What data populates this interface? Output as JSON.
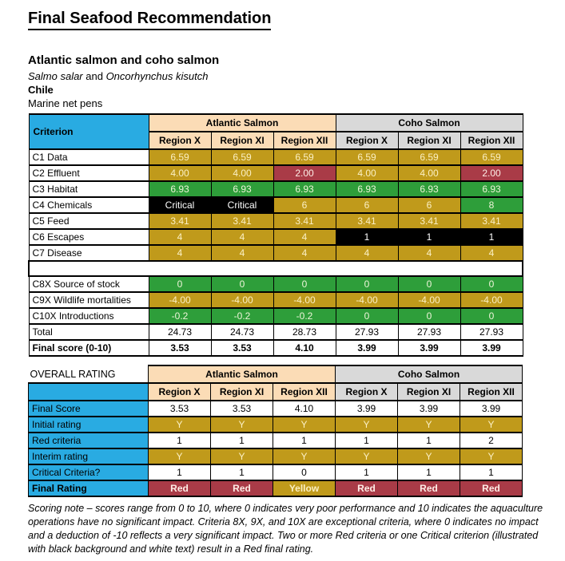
{
  "page": {
    "title": "Final Seafood Recommendation",
    "species_heading": "Atlantic salmon and coho salmon",
    "latin_1": "Salmo salar",
    "latin_mid": " and ",
    "latin_2": "Oncorhynchus kisutch",
    "country": "Chile",
    "method": "Marine net pens"
  },
  "colors": {
    "header_blue": "#29ABE2",
    "atlantic_peach": "#FBDCB6",
    "coho_gray": "#D9D9D9",
    "score_gold": "#C09A1B",
    "score_green": "#2E9E3A",
    "score_red": "#A93B47",
    "critical_black": "#000000"
  },
  "scores_table": {
    "corner_label": "Criterion",
    "group_headers": [
      {
        "label": "Atlantic Salmon"
      },
      {
        "label": "Coho Salmon"
      }
    ],
    "region_headers": [
      "Region X",
      "Region XI",
      "Region XII",
      "Region X",
      "Region XI",
      "Region XII"
    ],
    "rows": [
      {
        "label": "C1 Data",
        "cells": [
          {
            "text": "6.59",
            "color": "gold"
          },
          {
            "text": "6.59",
            "color": "gold"
          },
          {
            "text": "6.59",
            "color": "gold"
          },
          {
            "text": "6.59",
            "color": "gold"
          },
          {
            "text": "6.59",
            "color": "gold"
          },
          {
            "text": "6.59",
            "color": "gold"
          }
        ]
      },
      {
        "label": "C2 Effluent",
        "cells": [
          {
            "text": "4.00",
            "color": "gold"
          },
          {
            "text": "4.00",
            "color": "gold"
          },
          {
            "text": "2.00",
            "color": "red"
          },
          {
            "text": "4.00",
            "color": "gold"
          },
          {
            "text": "4.00",
            "color": "gold"
          },
          {
            "text": "2.00",
            "color": "red"
          }
        ]
      },
      {
        "label": "C3 Habitat",
        "cells": [
          {
            "text": "6.93",
            "color": "green"
          },
          {
            "text": "6.93",
            "color": "green"
          },
          {
            "text": "6.93",
            "color": "green"
          },
          {
            "text": "6.93",
            "color": "green"
          },
          {
            "text": "6.93",
            "color": "green"
          },
          {
            "text": "6.93",
            "color": "green"
          }
        ]
      },
      {
        "label": "C4 Chemicals",
        "cells": [
          {
            "text": "Critical",
            "color": "black"
          },
          {
            "text": "Critical",
            "color": "black"
          },
          {
            "text": "6",
            "color": "gold"
          },
          {
            "text": "6",
            "color": "gold"
          },
          {
            "text": "6",
            "color": "gold"
          },
          {
            "text": "8",
            "color": "green"
          }
        ]
      },
      {
        "label": "C5 Feed",
        "cells": [
          {
            "text": "3.41",
            "color": "gold"
          },
          {
            "text": "3.41",
            "color": "gold"
          },
          {
            "text": "3.41",
            "color": "gold"
          },
          {
            "text": "3.41",
            "color": "gold"
          },
          {
            "text": "3.41",
            "color": "gold"
          },
          {
            "text": "3.41",
            "color": "gold"
          }
        ]
      },
      {
        "label": "C6 Escapes",
        "cells": [
          {
            "text": "4",
            "color": "gold"
          },
          {
            "text": "4",
            "color": "gold"
          },
          {
            "text": "4",
            "color": "gold"
          },
          {
            "text": "1",
            "color": "black"
          },
          {
            "text": "1",
            "color": "black"
          },
          {
            "text": "1",
            "color": "black"
          }
        ]
      },
      {
        "label": "C7 Disease",
        "cells": [
          {
            "text": "4",
            "color": "gold"
          },
          {
            "text": "4",
            "color": "gold"
          },
          {
            "text": "4",
            "color": "gold"
          },
          {
            "text": "4",
            "color": "gold"
          },
          {
            "text": "4",
            "color": "gold"
          },
          {
            "text": "4",
            "color": "gold"
          }
        ]
      },
      {
        "spacer": true
      },
      {
        "label": "C8X Source of stock",
        "cells": [
          {
            "text": "0",
            "color": "green"
          },
          {
            "text": "0",
            "color": "green"
          },
          {
            "text": "0",
            "color": "green"
          },
          {
            "text": "0",
            "color": "green"
          },
          {
            "text": "0",
            "color": "green"
          },
          {
            "text": "0",
            "color": "green"
          }
        ]
      },
      {
        "label": "C9X Wildlife mortalities",
        "cells": [
          {
            "text": "-4.00",
            "color": "gold"
          },
          {
            "text": "-4.00",
            "color": "gold"
          },
          {
            "text": "-4.00",
            "color": "gold"
          },
          {
            "text": "-4.00",
            "color": "gold"
          },
          {
            "text": "-4.00",
            "color": "gold"
          },
          {
            "text": "-4.00",
            "color": "gold"
          }
        ]
      },
      {
        "label": "C10X Introductions",
        "cells": [
          {
            "text": "-0.2",
            "color": "green"
          },
          {
            "text": "-0.2",
            "color": "green"
          },
          {
            "text": "-0.2",
            "color": "green"
          },
          {
            "text": "0",
            "color": "green"
          },
          {
            "text": "0",
            "color": "green"
          },
          {
            "text": "0",
            "color": "green"
          }
        ]
      },
      {
        "label": "Total",
        "cells": [
          {
            "text": "24.73",
            "color": "white"
          },
          {
            "text": "24.73",
            "color": "white"
          },
          {
            "text": "28.73",
            "color": "white"
          },
          {
            "text": "27.93",
            "color": "white"
          },
          {
            "text": "27.93",
            "color": "white"
          },
          {
            "text": "27.93",
            "color": "white"
          }
        ]
      },
      {
        "label": "Final score (0-10)",
        "bold": true,
        "cells": [
          {
            "text": "3.53",
            "color": "white"
          },
          {
            "text": "3.53",
            "color": "white"
          },
          {
            "text": "4.10",
            "color": "white"
          },
          {
            "text": "3.99",
            "color": "white"
          },
          {
            "text": "3.99",
            "color": "white"
          },
          {
            "text": "3.99",
            "color": "white"
          }
        ]
      }
    ]
  },
  "rating_table": {
    "corner_label": "OVERALL RATING",
    "group_headers": [
      {
        "label": "Atlantic Salmon"
      },
      {
        "label": "Coho Salmon"
      }
    ],
    "region_headers": [
      "Region X",
      "Region XI",
      "Region XII",
      "Region X",
      "Region XI",
      "Region XII"
    ],
    "rows": [
      {
        "label": "Final Score",
        "cells": [
          {
            "text": "3.53",
            "color": "white"
          },
          {
            "text": "3.53",
            "color": "white"
          },
          {
            "text": "4.10",
            "color": "white"
          },
          {
            "text": "3.99",
            "color": "white"
          },
          {
            "text": "3.99",
            "color": "white"
          },
          {
            "text": "3.99",
            "color": "white"
          }
        ]
      },
      {
        "label": "Initial rating",
        "cells": [
          {
            "text": "Y",
            "color": "gold"
          },
          {
            "text": "Y",
            "color": "gold"
          },
          {
            "text": "Y",
            "color": "gold"
          },
          {
            "text": "Y",
            "color": "gold"
          },
          {
            "text": "Y",
            "color": "gold"
          },
          {
            "text": "Y",
            "color": "gold"
          }
        ]
      },
      {
        "label": "Red criteria",
        "cells": [
          {
            "text": "1",
            "color": "white"
          },
          {
            "text": "1",
            "color": "white"
          },
          {
            "text": "1",
            "color": "white"
          },
          {
            "text": "1",
            "color": "white"
          },
          {
            "text": "1",
            "color": "white"
          },
          {
            "text": "2",
            "color": "white"
          }
        ]
      },
      {
        "label": "Interim rating",
        "cells": [
          {
            "text": "Y",
            "color": "gold"
          },
          {
            "text": "Y",
            "color": "gold"
          },
          {
            "text": "Y",
            "color": "gold"
          },
          {
            "text": "Y",
            "color": "gold"
          },
          {
            "text": "Y",
            "color": "gold"
          },
          {
            "text": "Y",
            "color": "gold"
          }
        ]
      },
      {
        "label": "Critical Criteria?",
        "cells": [
          {
            "text": "1",
            "color": "white"
          },
          {
            "text": "1",
            "color": "white"
          },
          {
            "text": "0",
            "color": "white"
          },
          {
            "text": "1",
            "color": "white"
          },
          {
            "text": "1",
            "color": "white"
          },
          {
            "text": "1",
            "color": "white"
          }
        ]
      },
      {
        "label": "Final Rating",
        "bold": true,
        "cells": [
          {
            "text": "Red",
            "color": "red"
          },
          {
            "text": "Red",
            "color": "red"
          },
          {
            "text": "Yellow",
            "color": "gold"
          },
          {
            "text": "Red",
            "color": "red"
          },
          {
            "text": "Red",
            "color": "red"
          },
          {
            "text": "Red",
            "color": "red"
          }
        ]
      }
    ]
  },
  "scoring_note": "Scoring note – scores range from 0 to 10, where 0 indicates very poor performance and 10 indicates the aquaculture operations have no significant impact. Criteria 8X, 9X, and 10X are exceptional criteria, where 0 indicates no impact and a deduction of -10 reflects a very significant impact. Two or more Red criteria or one Critical criterion (illustrated with black background and white text) result in a Red final rating."
}
